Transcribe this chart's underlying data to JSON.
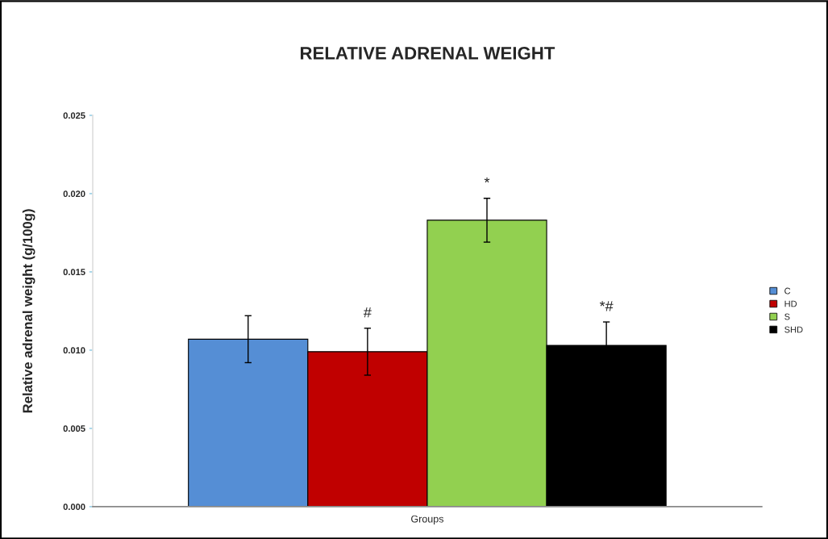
{
  "chart_data": {
    "type": "bar",
    "title": "RELATIVE ADRENAL WEIGHT",
    "xlabel": "Groups",
    "ylabel": "Relative adrenal weight (g/100g)",
    "categories": [
      null
    ],
    "series": [
      {
        "name": "C",
        "color": "#558ed5",
        "values": [
          0.0107
        ],
        "errors": [
          0.0015
        ],
        "value_labels": [
          null
        ]
      },
      {
        "name": "HD",
        "color": "#c00000",
        "values": [
          0.0099
        ],
        "errors": [
          0.0015
        ],
        "value_labels": [
          "#"
        ]
      },
      {
        "name": "S",
        "color": "#92d050",
        "values": [
          0.0183
        ],
        "errors": [
          0.0014
        ],
        "value_labels": [
          "*"
        ]
      },
      {
        "name": "SHD",
        "color": "#000000",
        "values": [
          0.0103
        ],
        "errors": [
          0.0015
        ],
        "value_labels": [
          "*#"
        ]
      }
    ],
    "ylim": [
      0,
      0.025
    ],
    "yticks": [
      {
        "value": 0,
        "label": "0.000"
      },
      {
        "value": 0.005,
        "label": "0.005"
      },
      {
        "value": 0.01,
        "label": "0.010"
      },
      {
        "value": 0.015,
        "label": "0.015"
      },
      {
        "value": 0.02,
        "label": "0.020"
      },
      {
        "value": 0.025,
        "label": "0.025"
      }
    ],
    "legend": "right",
    "grid": false
  }
}
